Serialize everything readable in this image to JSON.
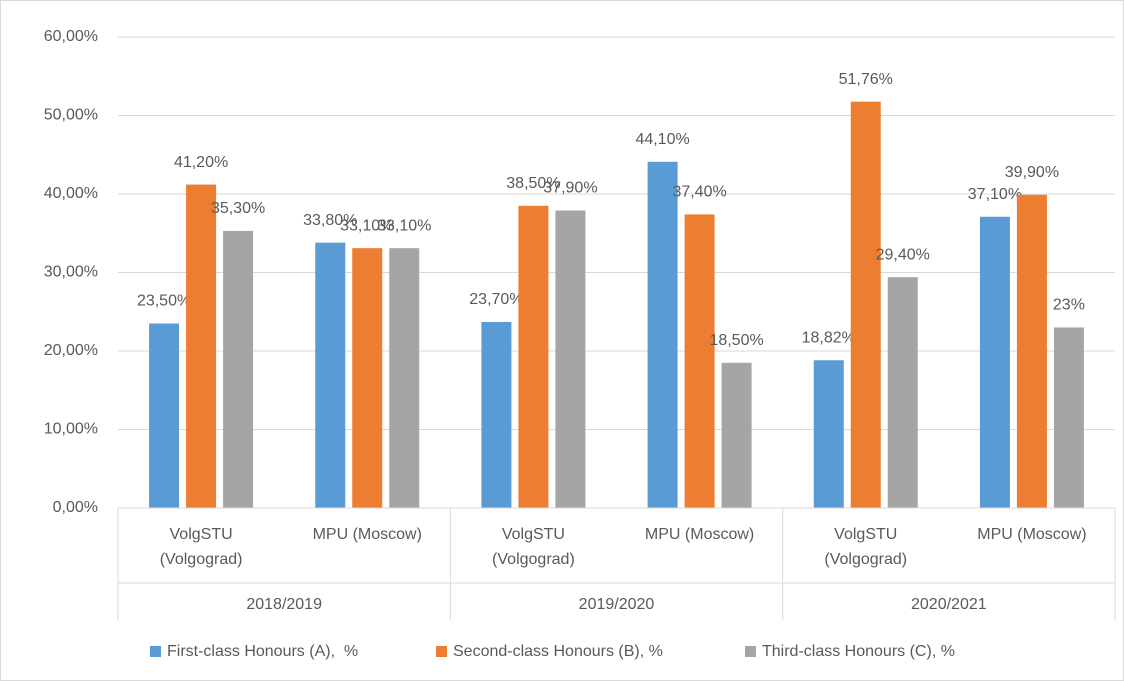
{
  "chart_data": {
    "type": "bar",
    "categories": [
      "VolgSTU (Volgograd)",
      "MPU (Moscow)",
      "VolgSTU (Volgograd)",
      "MPU (Moscow)",
      "VolgSTU (Volgograd)",
      "MPU (Moscow)"
    ],
    "category_groups": [
      "2018/2019",
      "2019/2020",
      "2020/2021"
    ],
    "series": [
      {
        "name": "First-class Honours (A),  %",
        "color": "#5b9bd5",
        "values": [
          23.5,
          33.8,
          23.7,
          44.1,
          18.82,
          37.1
        ],
        "value_labels": [
          "23,50%",
          "33,80%",
          "23,70%",
          "44,10%",
          "18,82%",
          "37,10%"
        ]
      },
      {
        "name": "Second-class Honours (B), %",
        "color": "#ed7d31",
        "values": [
          41.2,
          33.1,
          38.5,
          37.4,
          51.76,
          39.9
        ],
        "value_labels": [
          "41,20%",
          "33,10%",
          "38,50%",
          "37,40%",
          "51,76%",
          "39,90%"
        ]
      },
      {
        "name": "Third-class Honours (C), %",
        "color": "#a5a5a5",
        "values": [
          35.3,
          33.1,
          37.9,
          18.5,
          29.4,
          23
        ],
        "value_labels": [
          "35,30%",
          "33,10%",
          "37,90%",
          "18,50%",
          "29,40%",
          "23%"
        ]
      }
    ],
    "ylim": [
      0,
      60
    ],
    "yticks": [
      {
        "value": 0,
        "label": "0,00%"
      },
      {
        "value": 10,
        "label": "10,00%"
      },
      {
        "value": 20,
        "label": "20,00%"
      },
      {
        "value": 30,
        "label": "30,00%"
      },
      {
        "value": 40,
        "label": "40,00%"
      },
      {
        "value": 50,
        "label": "50,00%"
      },
      {
        "value": 60,
        "label": "60,00%"
      }
    ],
    "grid": true,
    "legend": "bottom"
  }
}
